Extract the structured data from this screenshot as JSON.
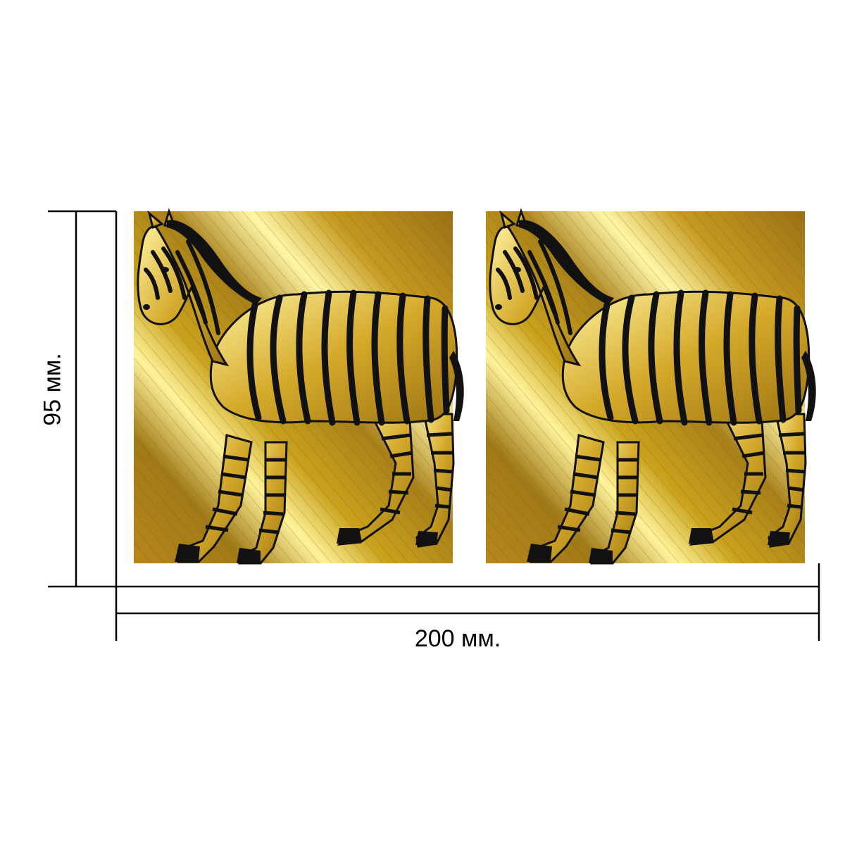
{
  "dimensions": {
    "width_label": "200 мм.",
    "height_label": "95 мм."
  },
  "artwork": {
    "panels": [
      {
        "subject": "zebra-illustration",
        "finish": "gold-foil"
      },
      {
        "subject": "zebra-illustration",
        "finish": "gold-foil"
      }
    ]
  },
  "colors": {
    "gold_light": "#fff39a",
    "gold_mid": "#c9a21c",
    "gold_dark": "#8a6414",
    "stripe": "#111111",
    "line": "#000000"
  }
}
